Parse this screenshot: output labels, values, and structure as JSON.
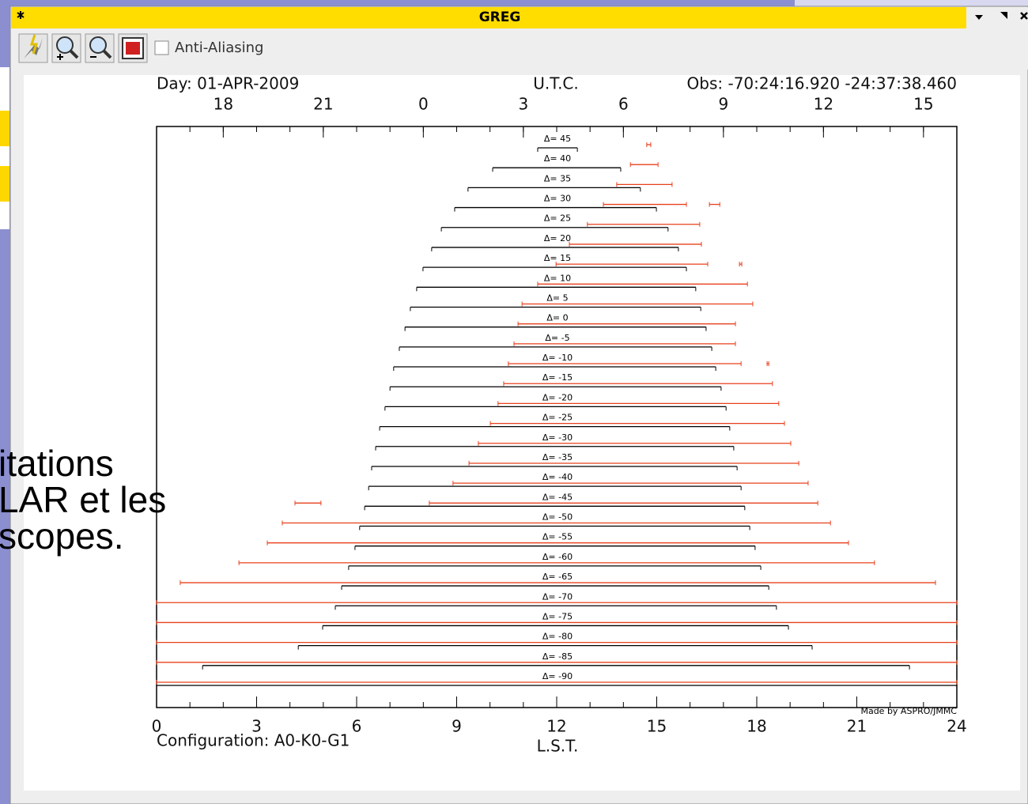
{
  "window": {
    "title": "GREG"
  },
  "toolbar": {
    "checkbox_label": "Anti-Aliasing"
  },
  "background_text": [
    "itations",
    "LAR et les",
    "scopes."
  ],
  "chart_data": {
    "type": "range",
    "header": "Day: 01-APR-2009",
    "x2label": "U.T.C.",
    "observatory": "Obs: -70:24:16.920 -24:37:38.460",
    "configuration": "Configuration: A0-K0-G1",
    "xlabel": "L.S.T.",
    "credit": "Made by ASPRO/JMMC",
    "xlim": [
      0,
      24
    ],
    "xticks": [
      0,
      3,
      6,
      9,
      12,
      15,
      18,
      21,
      24
    ],
    "x2lim": [
      16,
      40
    ],
    "x2ticks": [
      18,
      21,
      {
        "value": 24,
        "label": "0"
      },
      {
        "value": 27,
        "label": "3"
      },
      {
        "value": 30,
        "label": "6"
      },
      {
        "value": 33,
        "label": "9"
      },
      {
        "value": 36,
        "label": "12"
      },
      {
        "value": 39,
        "label": "15"
      }
    ],
    "range_color": "#000000",
    "extra_color": "#e8401c",
    "rows": [
      {
        "label": "Δ= 45",
        "range": [
          11.43,
          12.62
        ],
        "extra": [
          [
            14.7,
            14.82
          ]
        ]
      },
      {
        "label": "Δ= 40",
        "range": [
          10.08,
          13.92
        ],
        "extra": [
          [
            14.21,
            15.04
          ]
        ]
      },
      {
        "label": "Δ= 35",
        "range": [
          9.34,
          14.51
        ],
        "extra": [
          [
            13.8,
            15.46
          ]
        ]
      },
      {
        "label": "Δ= 30",
        "range": [
          8.94,
          14.99
        ],
        "extra": [
          [
            13.4,
            15.89
          ],
          [
            16.58,
            16.89
          ]
        ]
      },
      {
        "label": "Δ= 25",
        "range": [
          8.54,
          15.34
        ],
        "extra": [
          [
            12.92,
            16.29
          ]
        ]
      },
      {
        "label": "Δ= 20",
        "range": [
          8.25,
          15.65
        ],
        "extra": [
          [
            12.38,
            16.34
          ]
        ]
      },
      {
        "label": "Δ= 15",
        "range": [
          7.99,
          15.89
        ],
        "extra": [
          [
            11.98,
            16.53
          ],
          [
            17.48,
            17.55
          ]
        ]
      },
      {
        "label": "Δ= 10",
        "range": [
          7.8,
          16.17
        ],
        "extra": [
          [
            11.43,
            17.72
          ]
        ]
      },
      {
        "label": "Δ= 5",
        "range": [
          7.61,
          16.32
        ],
        "extra": [
          [
            10.96,
            17.88
          ]
        ]
      },
      {
        "label": "Δ= 0",
        "range": [
          7.45,
          16.48
        ],
        "extra": [
          [
            10.84,
            17.36
          ]
        ]
      },
      {
        "label": "Δ= -5",
        "range": [
          7.28,
          16.65
        ],
        "extra": [
          [
            10.72,
            17.36
          ]
        ]
      },
      {
        "label": "Δ= -10",
        "range": [
          7.11,
          16.77
        ],
        "extra": [
          [
            10.55,
            17.53
          ],
          [
            18.31,
            18.36
          ]
        ]
      },
      {
        "label": "Δ= -15",
        "range": [
          7.0,
          16.93
        ],
        "extra": [
          [
            10.41,
            18.47
          ]
        ]
      },
      {
        "label": "Δ= -20",
        "range": [
          6.85,
          17.08
        ],
        "extra": [
          [
            10.24,
            18.66
          ]
        ]
      },
      {
        "label": "Δ= -25",
        "range": [
          6.69,
          17.19
        ],
        "extra": [
          [
            10.01,
            18.83
          ]
        ]
      },
      {
        "label": "Δ= -30",
        "range": [
          6.57,
          17.31
        ],
        "extra": [
          [
            9.65,
            19.02
          ]
        ]
      },
      {
        "label": "Δ= -35",
        "range": [
          6.45,
          17.41
        ],
        "extra": [
          [
            9.37,
            19.26
          ]
        ]
      },
      {
        "label": "Δ= -40",
        "range": [
          6.36,
          17.53
        ],
        "extra": [
          [
            8.89,
            19.54
          ]
        ]
      },
      {
        "label": "Δ= -45",
        "range": [
          6.24,
          17.64
        ],
        "extra": [
          [
            8.18,
            19.83
          ],
          [
            4.15,
            4.93
          ]
        ]
      },
      {
        "label": "Δ= -50",
        "range": [
          6.09,
          17.79
        ],
        "extra": [
          [
            3.77,
            20.21
          ]
        ]
      },
      {
        "label": "Δ= -55",
        "range": [
          5.95,
          17.95
        ],
        "extra": [
          [
            3.32,
            20.75
          ]
        ]
      },
      {
        "label": "Δ= -60",
        "range": [
          5.76,
          18.12
        ],
        "extra": [
          [
            2.47,
            21.53
          ]
        ]
      },
      {
        "label": "Δ= -65",
        "range": [
          5.55,
          18.36
        ],
        "extra": [
          [
            0.71,
            23.36
          ]
        ]
      },
      {
        "label": "Δ= -70",
        "range": [
          5.36,
          18.59
        ],
        "extra": [
          [
            0,
            24
          ]
        ]
      },
      {
        "label": "Δ= -75",
        "range": [
          4.98,
          18.95
        ],
        "extra": [
          [
            0,
            24
          ]
        ]
      },
      {
        "label": "Δ= -80",
        "range": [
          4.25,
          19.66
        ],
        "extra": [
          [
            0,
            24
          ]
        ]
      },
      {
        "label": "Δ= -85",
        "range": [
          1.38,
          22.58
        ],
        "extra": [
          [
            0,
            24
          ]
        ]
      },
      {
        "label": "Δ= -90",
        "range": [
          0,
          24
        ],
        "extra": [
          [
            0,
            24
          ]
        ]
      }
    ]
  }
}
